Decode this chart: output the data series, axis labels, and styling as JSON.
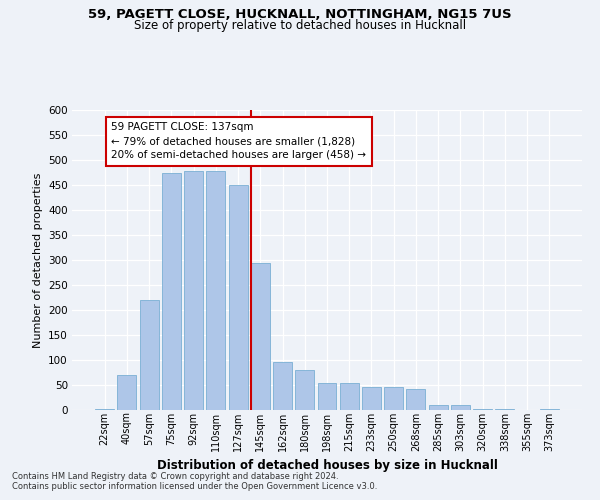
{
  "title_line1": "59, PAGETT CLOSE, HUCKNALL, NOTTINGHAM, NG15 7US",
  "title_line2": "Size of property relative to detached houses in Hucknall",
  "xlabel": "Distribution of detached houses by size in Hucknall",
  "ylabel": "Number of detached properties",
  "categories": [
    "22sqm",
    "40sqm",
    "57sqm",
    "75sqm",
    "92sqm",
    "110sqm",
    "127sqm",
    "145sqm",
    "162sqm",
    "180sqm",
    "198sqm",
    "215sqm",
    "233sqm",
    "250sqm",
    "268sqm",
    "285sqm",
    "303sqm",
    "320sqm",
    "338sqm",
    "355sqm",
    "373sqm"
  ],
  "values": [
    3,
    70,
    220,
    475,
    478,
    478,
    450,
    295,
    97,
    80,
    55,
    55,
    47,
    47,
    42,
    11,
    10,
    3,
    2,
    1,
    3
  ],
  "bar_color": "#aec6e8",
  "bar_edge_color": "#7aafd4",
  "highlight_index": 7,
  "highlight_line_color": "#cc0000",
  "annotation_line1": "59 PAGETT CLOSE: 137sqm",
  "annotation_line2": "← 79% of detached houses are smaller (1,828)",
  "annotation_line3": "20% of semi-detached houses are larger (458) →",
  "annotation_box_color": "#ffffff",
  "annotation_box_edge_color": "#cc0000",
  "ylim": [
    0,
    600
  ],
  "yticks": [
    0,
    50,
    100,
    150,
    200,
    250,
    300,
    350,
    400,
    450,
    500,
    550,
    600
  ],
  "background_color": "#eef2f8",
  "grid_color": "#ffffff",
  "footer_line1": "Contains HM Land Registry data © Crown copyright and database right 2024.",
  "footer_line2": "Contains public sector information licensed under the Open Government Licence v3.0."
}
